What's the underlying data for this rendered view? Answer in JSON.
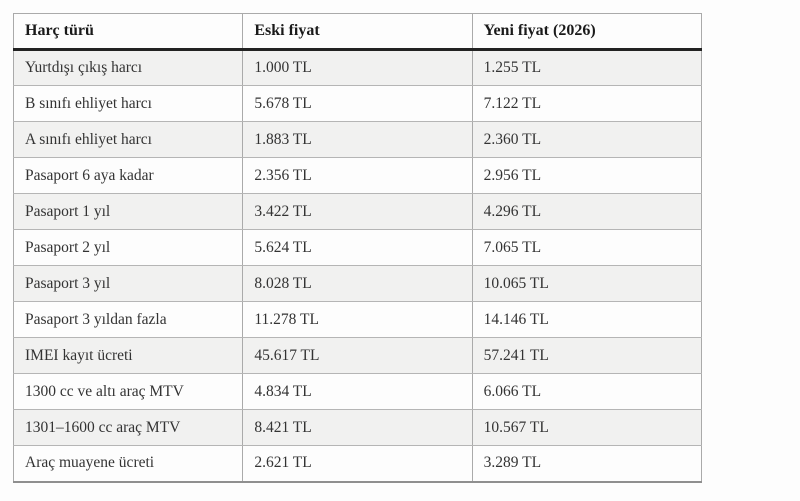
{
  "chart_data": {
    "type": "table",
    "title": "",
    "columns": [
      "Harç türü",
      "Eski fiyat",
      "Yeni fiyat (2026)"
    ],
    "rows": [
      [
        "Yurtdışı çıkış harcı",
        "1.000 TL",
        "1.255 TL"
      ],
      [
        "B sınıfı ehliyet harcı",
        "5.678 TL",
        "7.122 TL"
      ],
      [
        "A sınıfı ehliyet harcı",
        "1.883 TL",
        "2.360 TL"
      ],
      [
        "Pasaport 6 aya kadar",
        "2.356 TL",
        "2.956 TL"
      ],
      [
        "Pasaport 1 yıl",
        "3.422 TL",
        "4.296 TL"
      ],
      [
        "Pasaport 2 yıl",
        "5.624 TL",
        "7.065 TL"
      ],
      [
        "Pasaport 3 yıl",
        "8.028 TL",
        "10.065 TL"
      ],
      [
        "Pasaport 3 yıldan fazla",
        "11.278 TL",
        "14.146 TL"
      ],
      [
        "IMEI kayıt ücreti",
        "45.617 TL",
        "57.241 TL"
      ],
      [
        "1300 cc ve altı araç MTV",
        "4.834 TL",
        "6.066 TL"
      ],
      [
        "1301–1600 cc araç MTV",
        "8.421 TL",
        "10.567 TL"
      ],
      [
        "Araç muayene ücreti",
        "2.621 TL",
        "3.289 TL"
      ]
    ],
    "layout": {
      "grid": true,
      "striped_rows": "odd",
      "header_rule": "thick-dark"
    }
  },
  "colors": {
    "page_background": "#fdfdfd",
    "stripe_row": "#f1f1f0",
    "grid_border": "#aaaaaa",
    "header_rule": "#222222",
    "header_text": "#1a1a1a",
    "cell_text": "#333333"
  }
}
